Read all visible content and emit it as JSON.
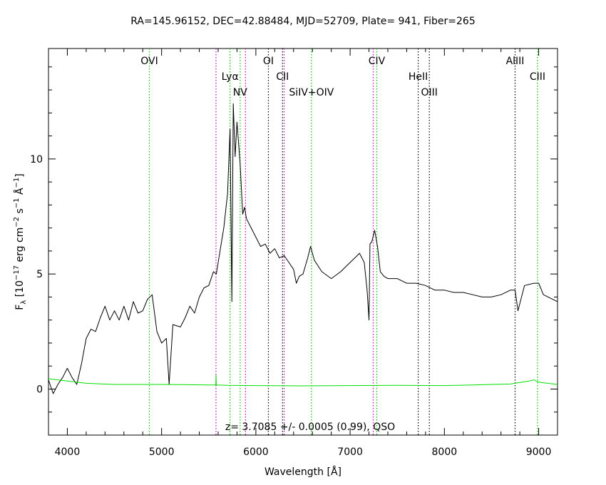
{
  "chart_data": {
    "type": "line",
    "title": "RA=145.96152, DEC=42.88484, MJD=52709, Plate= 941, Fiber=265",
    "xlabel": "Wavelength [Å]",
    "ylabel": "F_λ [10^-17 erg cm^-2 s^-1 Å^-1]",
    "ylabel_parts": {
      "F": "F",
      "lambda": "λ",
      "open": " [10",
      "exp1": "−17",
      "erg": " erg cm",
      "exp2": "−2",
      "s": " s",
      "exp3": "−1",
      "ang": " Å",
      "exp4": "−1",
      "close": "]"
    },
    "annotation": "z= 3.7085 +/- 0.0005 (0.99), QSO",
    "xlim": [
      3800,
      9200
    ],
    "ylim": [
      -2,
      14.8
    ],
    "x_ticks": [
      4000,
      5000,
      6000,
      7000,
      8000,
      9000
    ],
    "x_tick_labels": [
      "4000",
      "5000",
      "6000",
      "7000",
      "8000",
      "9000"
    ],
    "y_ticks": [
      0,
      5,
      10
    ],
    "y_tick_labels": [
      "0",
      "5",
      "10"
    ],
    "colors": {
      "flux": "#000000",
      "error": "#00e000",
      "emission_line": "#00c000",
      "absorption_line": "#000000",
      "sky_line": "#c000c0"
    },
    "lines": [
      {
        "name": "OVI",
        "wavelength": 4870,
        "kind": "emission",
        "level": 0
      },
      {
        "name": "Lyα",
        "wavelength": 5726,
        "kind": "emission",
        "level": 1
      },
      {
        "name": "NV",
        "wavelength": 5833,
        "kind": "emission",
        "level": 2
      },
      {
        "name": "OI",
        "wavelength": 6133,
        "kind": "absorption",
        "level": 0
      },
      {
        "name": "CII",
        "wavelength": 6283,
        "kind": "absorption",
        "level": 1
      },
      {
        "name": "SiIV+OIV",
        "wavelength": 6590,
        "kind": "emission",
        "level": 2
      },
      {
        "name": "CIV",
        "wavelength": 7283,
        "kind": "emission",
        "level": 0
      },
      {
        "name": "HeII",
        "wavelength": 7722,
        "kind": "absorption",
        "level": 1
      },
      {
        "name": "OIII",
        "wavelength": 7840,
        "kind": "absorption",
        "level": 2
      },
      {
        "name": "AlIII",
        "wavelength": 8750,
        "kind": "absorption",
        "level": 0
      },
      {
        "name": "CIII",
        "wavelength": 8988,
        "kind": "emission",
        "level": 1
      }
    ],
    "sky_lines": [
      5577,
      5890,
      6300,
      7245
    ],
    "series": [
      {
        "role": "flux",
        "x": [
          3800,
          3850,
          3900,
          3950,
          4000,
          4050,
          4100,
          4150,
          4200,
          4250,
          4300,
          4350,
          4400,
          4450,
          4500,
          4550,
          4600,
          4650,
          4700,
          4750,
          4800,
          4850,
          4900,
          4950,
          5000,
          5050,
          5080,
          5120,
          5200,
          5250,
          5300,
          5350,
          5400,
          5450,
          5500,
          5550,
          5580,
          5620,
          5660,
          5700,
          5726,
          5745,
          5760,
          5780,
          5800,
          5833,
          5860,
          5880,
          5900,
          5950,
          6000,
          6050,
          6100,
          6150,
          6200,
          6250,
          6300,
          6350,
          6400,
          6430,
          6460,
          6500,
          6550,
          6580,
          6620,
          6700,
          6800,
          6900,
          7000,
          7100,
          7150,
          7180,
          7200,
          7210,
          7230,
          7260,
          7290,
          7320,
          7360,
          7400,
          7500,
          7600,
          7700,
          7800,
          7900,
          8000,
          8100,
          8200,
          8300,
          8400,
          8500,
          8600,
          8700,
          8750,
          8780,
          8850,
          8950,
          9000,
          9050,
          9100,
          9150,
          9200
        ],
        "y": [
          0.4,
          -0.2,
          0.2,
          0.5,
          0.9,
          0.5,
          0.2,
          1.1,
          2.2,
          2.6,
          2.5,
          3.1,
          3.6,
          3.0,
          3.4,
          3.0,
          3.6,
          3.0,
          3.8,
          3.3,
          3.4,
          3.9,
          4.1,
          2.5,
          2.0,
          2.2,
          0.2,
          2.8,
          2.7,
          3.1,
          3.6,
          3.3,
          4.0,
          4.4,
          4.5,
          5.1,
          5.0,
          6.0,
          7.0,
          8.5,
          11.3,
          3.8,
          12.4,
          10.1,
          11.6,
          9.8,
          7.6,
          7.9,
          7.4,
          7.0,
          6.6,
          6.2,
          6.3,
          5.9,
          6.1,
          5.7,
          5.8,
          5.5,
          5.2,
          4.6,
          4.9,
          5.0,
          5.7,
          6.2,
          5.6,
          5.1,
          4.8,
          5.1,
          5.5,
          5.9,
          5.5,
          4.3,
          3.0,
          6.3,
          6.4,
          6.9,
          6.2,
          5.1,
          4.9,
          4.8,
          4.8,
          4.6,
          4.6,
          4.5,
          4.3,
          4.3,
          4.2,
          4.2,
          4.1,
          4.0,
          4.0,
          4.1,
          4.3,
          4.3,
          3.4,
          4.5,
          4.6,
          4.6,
          4.1,
          4.0,
          3.9,
          3.8
        ]
      },
      {
        "role": "error",
        "x": [
          3800,
          4000,
          4200,
          4500,
          5000,
          5500,
          5575,
          5577,
          5580,
          5700,
          6000,
          6500,
          7000,
          7500,
          8000,
          8300,
          8500,
          8700,
          8900,
          8950,
          9000,
          9200
        ],
        "y": [
          0.45,
          0.35,
          0.25,
          0.2,
          0.2,
          0.18,
          0.18,
          0.6,
          0.18,
          0.16,
          0.15,
          0.14,
          0.15,
          0.16,
          0.15,
          0.18,
          0.2,
          0.22,
          0.35,
          0.4,
          0.3,
          0.2
        ]
      }
    ]
  }
}
